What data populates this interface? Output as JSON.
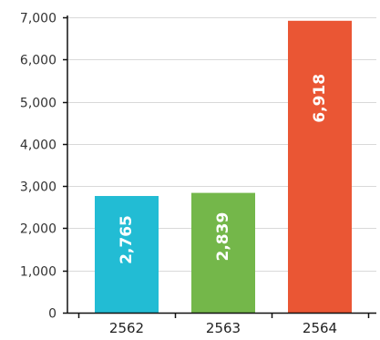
{
  "chart_data": {
    "type": "bar",
    "title": "",
    "xlabel": "",
    "ylabel": "",
    "categories": [
      "2562",
      "2563",
      "2564"
    ],
    "values": [
      2765,
      2839,
      6918
    ],
    "value_labels": [
      "2,765",
      "2,839",
      "6,918"
    ],
    "bar_colors": [
      "#22bcd4",
      "#74b74a",
      "#ea5634"
    ],
    "ylim": [
      0,
      7000
    ],
    "yticks": [
      0,
      1000,
      2000,
      3000,
      4000,
      5000,
      6000,
      7000
    ],
    "ytick_labels": [
      "0",
      "1,000",
      "2,000",
      "3,000",
      "4,000",
      "5,000",
      "6,000",
      "7,000"
    ],
    "grid": true,
    "grid_color": "#d9d9d9",
    "axis_color": "#111111",
    "legend": "none"
  }
}
